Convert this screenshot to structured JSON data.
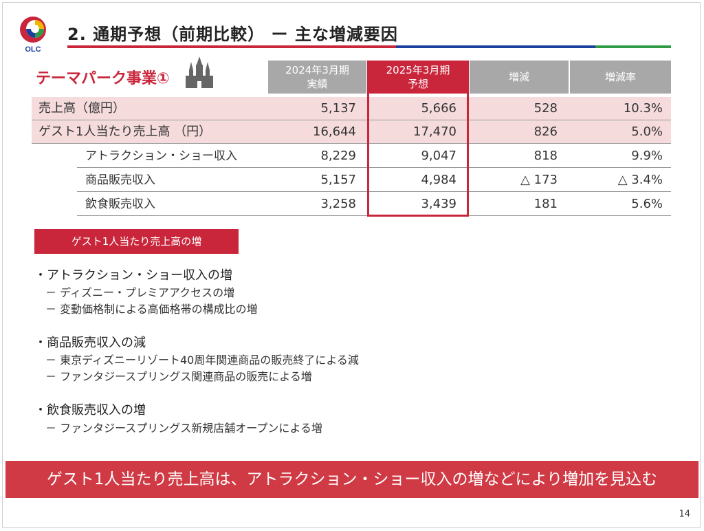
{
  "header": {
    "logo_text": "OLC",
    "title": "2. 通期予想（前期比較） ー 主な増減要因"
  },
  "section": {
    "label": "テーマパーク事業①"
  },
  "table": {
    "columns": [
      {
        "line1": "2024年3月期",
        "line2": "実績"
      },
      {
        "line1": "2025年3月期",
        "line2": "予想"
      },
      {
        "line1": "増減",
        "line2": ""
      },
      {
        "line1": "増減率",
        "line2": ""
      }
    ],
    "rows": [
      {
        "label": "売上高（億円）",
        "values": [
          "5,137",
          "5,666",
          "528",
          "10.3%"
        ]
      },
      {
        "label": "ゲスト1人当たり売上高 （円）",
        "values": [
          "16,644",
          "17,470",
          "826",
          "5.0%"
        ]
      },
      {
        "label": "アトラクション・ショー収入",
        "values": [
          "8,229",
          "9,047",
          "818",
          "9.9%"
        ]
      },
      {
        "label": "商品販売収入",
        "values": [
          "5,157",
          "4,984",
          "△ 173",
          "△ 3.4%"
        ]
      },
      {
        "label": "飲食販売収入",
        "values": [
          "3,258",
          "3,439",
          "181",
          "5.6%"
        ]
      }
    ]
  },
  "factor_tag": "ゲスト1人当たり売上高の増",
  "bullets": [
    {
      "heading": "・アトラクション・ショー収入の増",
      "items": [
        "－ ディズニー・プレミアアクセスの増",
        "－ 変動価格制による高価格帯の構成比の増"
      ]
    },
    {
      "heading": "・商品販売収入の減",
      "items": [
        "－ 東京ディズニーリゾート40周年関連商品の販売終了による減",
        "－ ファンタジースプリングス関連商品の販売による増"
      ]
    },
    {
      "heading": "・飲食販売収入の増",
      "items": [
        "－ ファンタジースプリングス新規店舗オープンによる増"
      ]
    }
  ],
  "banner": "ゲスト1人当たり売上高は、アトラクション・ショー収入の増などにより増加を見込む",
  "page_number": "14",
  "colors": {
    "brand_red": "#c9263c",
    "brand_blue": "#1a3f9e",
    "brand_green": "#2f9b47",
    "row_pink": "#f5dbdb",
    "header_gray": "#a8a8a8"
  }
}
